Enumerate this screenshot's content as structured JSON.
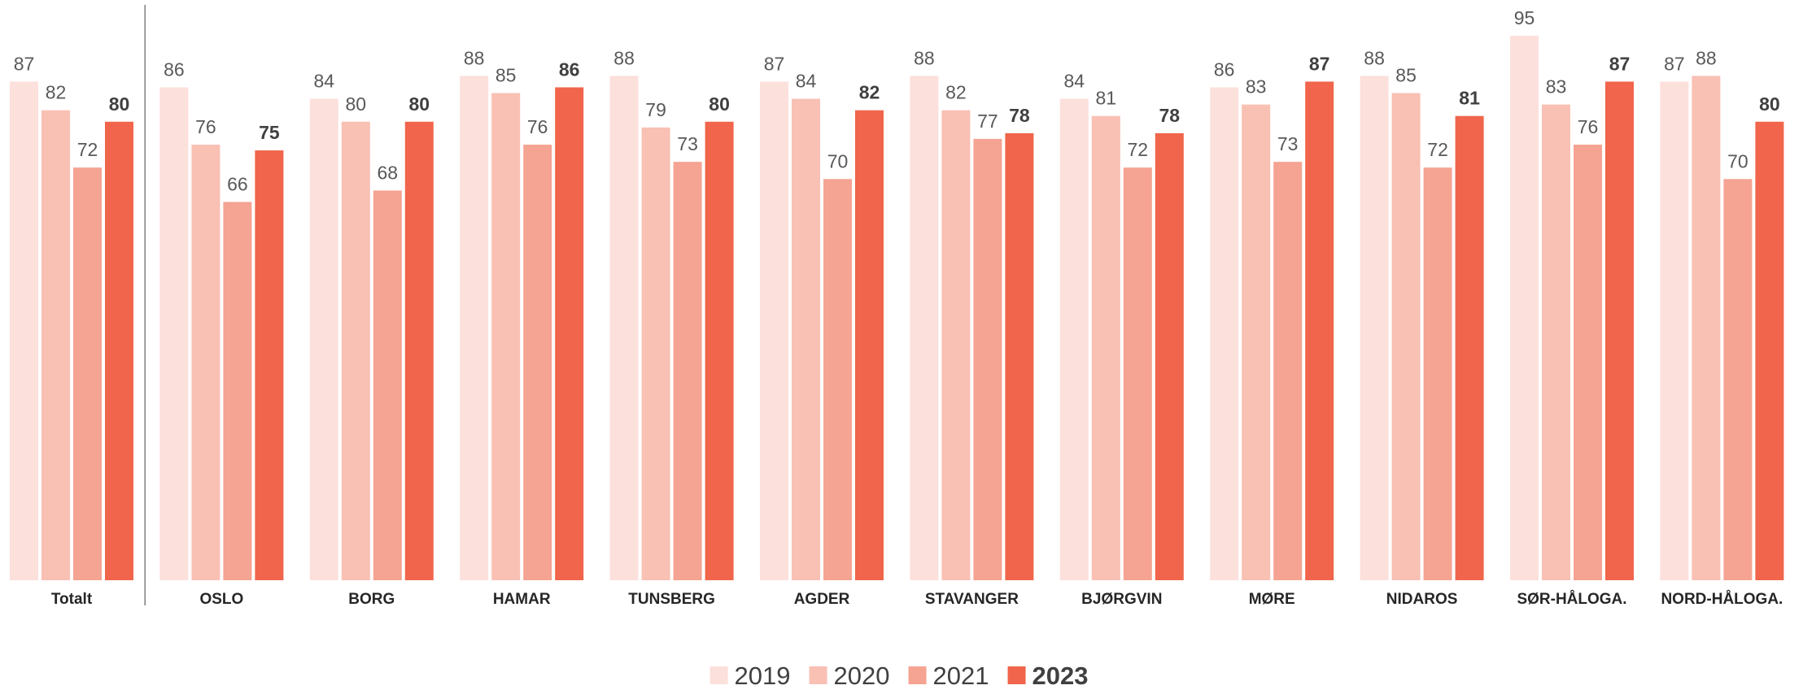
{
  "chart_data": {
    "type": "bar",
    "categories": [
      "Totalt",
      "OSLO",
      "BORG",
      "HAMAR",
      "TUNSBERG",
      "AGDER",
      "STAVANGER",
      "BJØRGVIN",
      "MØRE",
      "NIDAROS",
      "SØR-HÅLOGA.",
      "NORD-HÅLOGA."
    ],
    "series": [
      {
        "name": "2019",
        "color": "#fce0dc",
        "values": [
          87,
          86,
          84,
          88,
          88,
          87,
          88,
          84,
          86,
          88,
          95,
          87
        ]
      },
      {
        "name": "2020",
        "color": "#f9c0b4",
        "values": [
          82,
          76,
          80,
          85,
          79,
          84,
          82,
          81,
          83,
          85,
          83,
          88
        ]
      },
      {
        "name": "2021",
        "color": "#f5a392",
        "values": [
          72,
          66,
          68,
          76,
          73,
          70,
          77,
          72,
          73,
          72,
          76,
          70
        ]
      },
      {
        "name": "2023",
        "color": "#f0654b",
        "values": [
          80,
          75,
          80,
          86,
          80,
          82,
          78,
          78,
          87,
          81,
          87,
          80
        ],
        "bold": true
      }
    ],
    "ylim": [
      0,
      95
    ],
    "separator_after_first_category": true,
    "legend_position": "bottom-center",
    "grid": false
  }
}
